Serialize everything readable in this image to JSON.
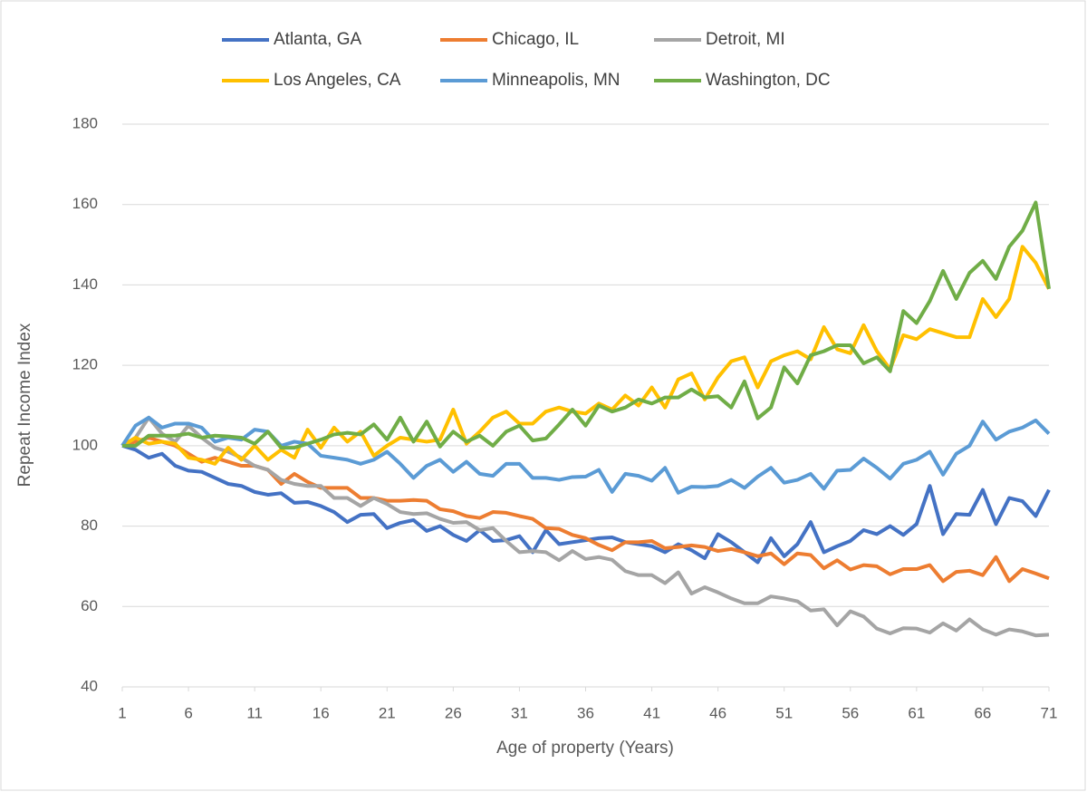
{
  "chart_data": {
    "type": "line",
    "x_label": "Age of property (Years)",
    "y_label": "Repeat Income Index",
    "x": [
      1,
      2,
      3,
      4,
      5,
      6,
      7,
      8,
      9,
      10,
      11,
      12,
      13,
      14,
      15,
      16,
      17,
      18,
      19,
      20,
      21,
      22,
      23,
      24,
      25,
      26,
      27,
      28,
      29,
      30,
      31,
      32,
      33,
      34,
      35,
      36,
      37,
      38,
      39,
      40,
      41,
      42,
      43,
      44,
      45,
      46,
      47,
      48,
      49,
      50,
      51,
      52,
      53,
      54,
      55,
      56,
      57,
      58,
      59,
      60,
      61,
      62,
      63,
      64,
      65,
      66,
      67,
      68,
      69,
      70,
      71
    ],
    "xlim": [
      1,
      71
    ],
    "xticks": [
      1,
      6,
      11,
      16,
      21,
      26,
      31,
      36,
      41,
      46,
      51,
      56,
      61,
      66,
      71
    ],
    "ylim": [
      40,
      180
    ],
    "yticks": [
      40,
      60,
      80,
      100,
      120,
      140,
      160,
      180
    ],
    "grid": true,
    "legend": "top",
    "series": [
      {
        "name": "Atlanta, GA",
        "color": "#4472c4",
        "values": [
          100,
          99,
          97,
          98,
          95,
          93.8,
          93.5,
          92,
          90.5,
          90,
          88.5,
          87.8,
          88.2,
          85.8,
          86,
          85,
          83.5,
          81,
          82.8,
          83,
          79.5,
          80.8,
          81.5,
          78.8,
          80,
          77.8,
          76.3,
          79,
          76.3,
          76.5,
          77.5,
          73.5,
          79,
          75.5,
          76,
          76.5,
          77,
          77.2,
          76,
          75.5,
          75,
          73.5,
          75.5,
          74,
          72,
          78,
          76,
          73.5,
          71,
          77,
          72.5,
          75.5,
          81,
          73.5,
          75,
          76.3,
          79,
          78,
          80,
          77.8,
          80.5,
          90,
          78,
          83,
          82.8,
          89,
          80.5,
          87,
          86.2,
          82.5,
          89
        ]
      },
      {
        "name": "Chicago, IL",
        "color": "#ed7d31",
        "values": [
          100,
          101,
          102,
          101,
          100,
          98,
          96,
          97,
          96,
          95,
          95,
          94,
          90.5,
          93,
          91,
          89.5,
          89.5,
          89.5,
          87,
          87,
          86.3,
          86.3,
          86.5,
          86.3,
          84.2,
          83.7,
          82.5,
          82,
          83.5,
          83.3,
          82.5,
          81.8,
          79.5,
          79.3,
          77.8,
          77,
          75.3,
          74,
          76,
          76,
          76.3,
          74.5,
          74.8,
          75.2,
          74.8,
          73.8,
          74.3,
          73.5,
          72.5,
          73.2,
          70.5,
          73.2,
          72.8,
          69.5,
          71.5,
          69.2,
          70.3,
          70,
          68,
          69.3,
          69.3,
          70.3,
          66.3,
          68.6,
          68.9,
          67.8,
          72.3,
          66.3,
          69.3,
          68.2,
          67
        ]
      },
      {
        "name": "Detroit, MI",
        "color": "#a5a5a5",
        "values": [
          100,
          102,
          107,
          103,
          101,
          105,
          102,
          99.5,
          98.5,
          97,
          95,
          94,
          91.5,
          90.5,
          90,
          90,
          87,
          87,
          85,
          87,
          85.5,
          83.5,
          83,
          83.2,
          81.8,
          80.8,
          81,
          79,
          79.5,
          76.3,
          73.5,
          73.8,
          73.5,
          71.5,
          73.8,
          71.8,
          72.3,
          71.6,
          68.8,
          67.8,
          67.8,
          65.8,
          68.5,
          63.2,
          64.8,
          63.5,
          62,
          60.8,
          60.8,
          62.5,
          62,
          61.3,
          59,
          59.3,
          55.3,
          58.8,
          57.5,
          54.5,
          53.3,
          54.6,
          54.5,
          53.5,
          55.8,
          54,
          56.8,
          54.3,
          53,
          54.3,
          53.8,
          52.8,
          53
        ]
      },
      {
        "name": "Los Angeles, CA",
        "color": "#ffc000",
        "values": [
          100,
          102,
          100.5,
          101,
          100.5,
          97,
          96.5,
          95.5,
          99.5,
          96.5,
          100,
          96.5,
          99,
          97,
          104,
          99.5,
          104.5,
          101,
          103.5,
          97.5,
          100,
          102,
          101.5,
          101,
          101.5,
          109,
          100.5,
          103.5,
          107,
          108.5,
          105.5,
          105.5,
          108.5,
          109.5,
          108.5,
          108,
          110.5,
          109,
          112.5,
          110,
          114.5,
          109.5,
          116.5,
          118,
          111.5,
          117,
          121,
          122,
          114.5,
          121,
          122.5,
          123.5,
          121.5,
          129.5,
          124,
          123,
          130,
          123.5,
          119,
          127.5,
          126.5,
          129,
          128,
          127,
          127,
          136.5,
          132,
          136.5,
          149.5,
          145.5,
          139
        ]
      },
      {
        "name": "Minneapolis, MN",
        "color": "#5b9bd5",
        "values": [
          100,
          105,
          107,
          104.5,
          105.5,
          105.5,
          104.5,
          101,
          102,
          101.5,
          104,
          103.5,
          100,
          101,
          100.5,
          97.5,
          97,
          96.5,
          95.5,
          96.5,
          98.5,
          95.5,
          92,
          95,
          96.5,
          93.5,
          96,
          93,
          92.5,
          95.5,
          95.5,
          92,
          92,
          91.5,
          92.2,
          92.3,
          94,
          88.5,
          93,
          92.5,
          91.3,
          94.5,
          88.3,
          89.8,
          89.7,
          90,
          91.5,
          89.5,
          92.3,
          94.5,
          90.8,
          91.5,
          93,
          89.3,
          93.8,
          94,
          96.8,
          94.5,
          91.8,
          95.5,
          96.5,
          98.5,
          92.8,
          98,
          100,
          106,
          101.5,
          103.5,
          104.5,
          106.3,
          103
        ]
      },
      {
        "name": "Washington, DC",
        "color": "#70ad47",
        "values": [
          100,
          100,
          102.5,
          102.5,
          102.5,
          103,
          102,
          102.5,
          102.3,
          102,
          100.5,
          103.5,
          99.5,
          99.5,
          100.5,
          101.5,
          102.8,
          103.2,
          102.8,
          105.3,
          101.5,
          107,
          101,
          106,
          99.8,
          103.5,
          101,
          102.5,
          100,
          103.5,
          105,
          101.3,
          101.8,
          105.3,
          109,
          105,
          110,
          108.5,
          109.5,
          111.5,
          110.5,
          112,
          112,
          114,
          112,
          112.3,
          109.5,
          116,
          106.8,
          109.5,
          119.5,
          115.5,
          122.5,
          123.5,
          125,
          125,
          120.5,
          122,
          118.5,
          133.5,
          130.5,
          136,
          143.5,
          136.5,
          143,
          146,
          141.5,
          149.5,
          153.5,
          160.5,
          139
        ]
      }
    ]
  }
}
